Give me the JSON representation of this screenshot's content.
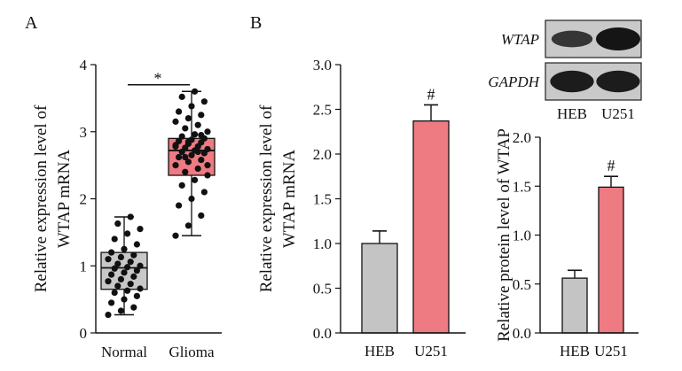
{
  "panel_labels": {
    "a": "A",
    "b": "B"
  },
  "colors": {
    "normal": "#c8c8c8",
    "glioma": "#ef7a82",
    "heb": "#c4c4c4",
    "u251": "#ee7a82",
    "blot_bg": "#c9c9c9",
    "band": "#151515"
  },
  "western_blot": {
    "rows": [
      {
        "label": "WTAP",
        "intensities": [
          0.55,
          1.0
        ]
      },
      {
        "label": "GAPDH",
        "intensities": [
          0.9,
          0.9
        ]
      }
    ],
    "lanes": [
      "HEB",
      "U251"
    ]
  },
  "chart_data": [
    {
      "panel": "A",
      "type": "box",
      "ylabel_lines": [
        "Relative expression level of",
        "WTAP mRNA"
      ],
      "ylim": [
        0,
        4
      ],
      "yticks": [
        "0",
        "1",
        "2",
        "3",
        "4"
      ],
      "categories": [
        "Normal",
        "Glioma"
      ],
      "boxes": [
        {
          "name": "Normal",
          "min": 0.27,
          "q1": 0.65,
          "median": 0.97,
          "q3": 1.2,
          "max": 1.73,
          "points": [
            0.27,
            0.33,
            0.38,
            0.45,
            0.5,
            0.55,
            0.6,
            0.63,
            0.66,
            0.7,
            0.73,
            0.77,
            0.8,
            0.84,
            0.87,
            0.9,
            0.93,
            0.96,
            0.98,
            1.0,
            1.03,
            1.06,
            1.1,
            1.13,
            1.16,
            1.2,
            1.25,
            1.32,
            1.4,
            1.48,
            1.55,
            1.63,
            1.73
          ]
        },
        {
          "name": "Glioma",
          "min": 1.45,
          "q1": 2.35,
          "median": 2.72,
          "q3": 2.9,
          "max": 3.6,
          "points": [
            1.45,
            1.6,
            1.75,
            1.9,
            2.0,
            2.1,
            2.2,
            2.28,
            2.35,
            2.4,
            2.45,
            2.5,
            2.55,
            2.58,
            2.62,
            2.65,
            2.68,
            2.7,
            2.72,
            2.74,
            2.76,
            2.78,
            2.8,
            2.82,
            2.84,
            2.86,
            2.88,
            2.9,
            2.93,
            2.96,
            3.0,
            3.05,
            3.1,
            3.15,
            3.2,
            3.25,
            3.3,
            3.38,
            3.45,
            3.52,
            3.6,
            2.5,
            2.62,
            2.7,
            2.78,
            2.85,
            2.95
          ]
        }
      ],
      "significance": {
        "label": "*",
        "y": 3.7
      }
    },
    {
      "panel": "B-left",
      "type": "bar",
      "ylabel_lines": [
        "Relative expression level of",
        "WTAP mRNA"
      ],
      "ylim": [
        0,
        3.0
      ],
      "yticks": [
        "0.0",
        "0.5",
        "1.0",
        "1.5",
        "2.0",
        "2.5",
        "3.0"
      ],
      "categories": [
        "HEB",
        "U251"
      ],
      "values": [
        1.0,
        2.37
      ],
      "errors": [
        0.14,
        0.18
      ],
      "annotations": [
        "",
        "#"
      ]
    },
    {
      "panel": "B-right",
      "type": "bar",
      "ylabel_lines": [
        "Relative protein level of WTAP"
      ],
      "ylim": [
        0,
        2.0
      ],
      "yticks": [
        "0.0",
        "0.5",
        "1.0",
        "1.5",
        "2.0"
      ],
      "categories": [
        "HEB",
        "U251"
      ],
      "values": [
        0.56,
        1.49
      ],
      "errors": [
        0.08,
        0.11
      ],
      "annotations": [
        "",
        "#"
      ]
    }
  ]
}
